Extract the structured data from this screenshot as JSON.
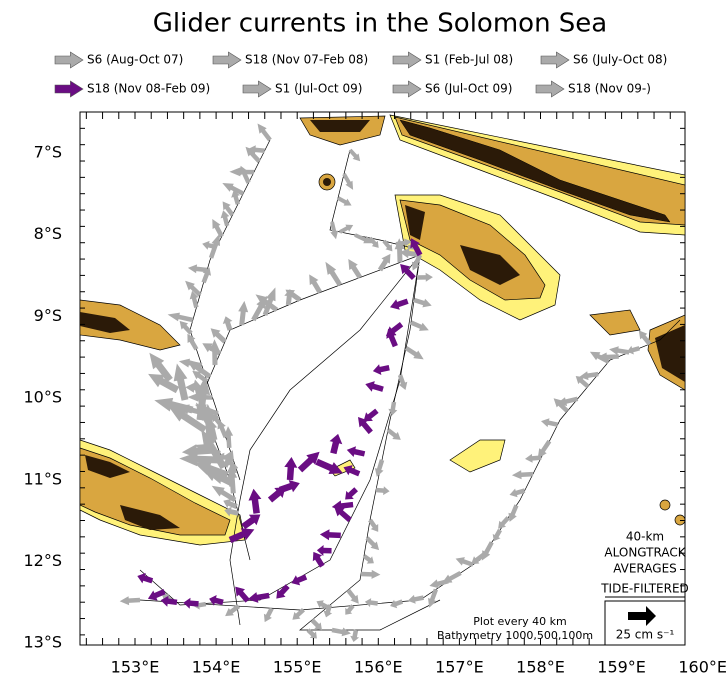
{
  "title": "Glider currents in the Solomon Sea",
  "legend": [
    {
      "label": "S6 (Aug-Oct 07)",
      "color": "#aaaaaa"
    },
    {
      "label": "S18 (Nov 07-Feb 08)",
      "color": "#aaaaaa"
    },
    {
      "label": "S1 (Feb-Jul 08)",
      "color": "#aaaaaa"
    },
    {
      "label": "S6 (July-Oct 08)",
      "color": "#aaaaaa"
    },
    {
      "label": "S18 (Nov 08-Feb 09)",
      "color": "#6a0d83"
    },
    {
      "label": "S1 (Jul-Oct 09)",
      "color": "#aaaaaa"
    },
    {
      "label": "S6 (Jul-Oct 09)",
      "color": "#aaaaaa"
    },
    {
      "label": "S18 (Nov 09-)",
      "color": "#aaaaaa"
    }
  ],
  "lat_labels": [
    "7°S",
    "8°S",
    "9°S",
    "10°S",
    "11°S",
    "12°S",
    "13°S"
  ],
  "lon_labels": [
    "153°E",
    "154°E",
    "155°E",
    "156°E",
    "157°E",
    "158°E",
    "159°E",
    "160°E"
  ],
  "annotations": {
    "box": [
      "40-km",
      "ALONGTRACK",
      "AVERAGES",
      "TIDE-FILTERED"
    ],
    "plot_every": "Plot every 40 km",
    "bathymetry": "Bathymetry 1000,500,100m",
    "scale": "25 cm s⁻¹"
  }
}
